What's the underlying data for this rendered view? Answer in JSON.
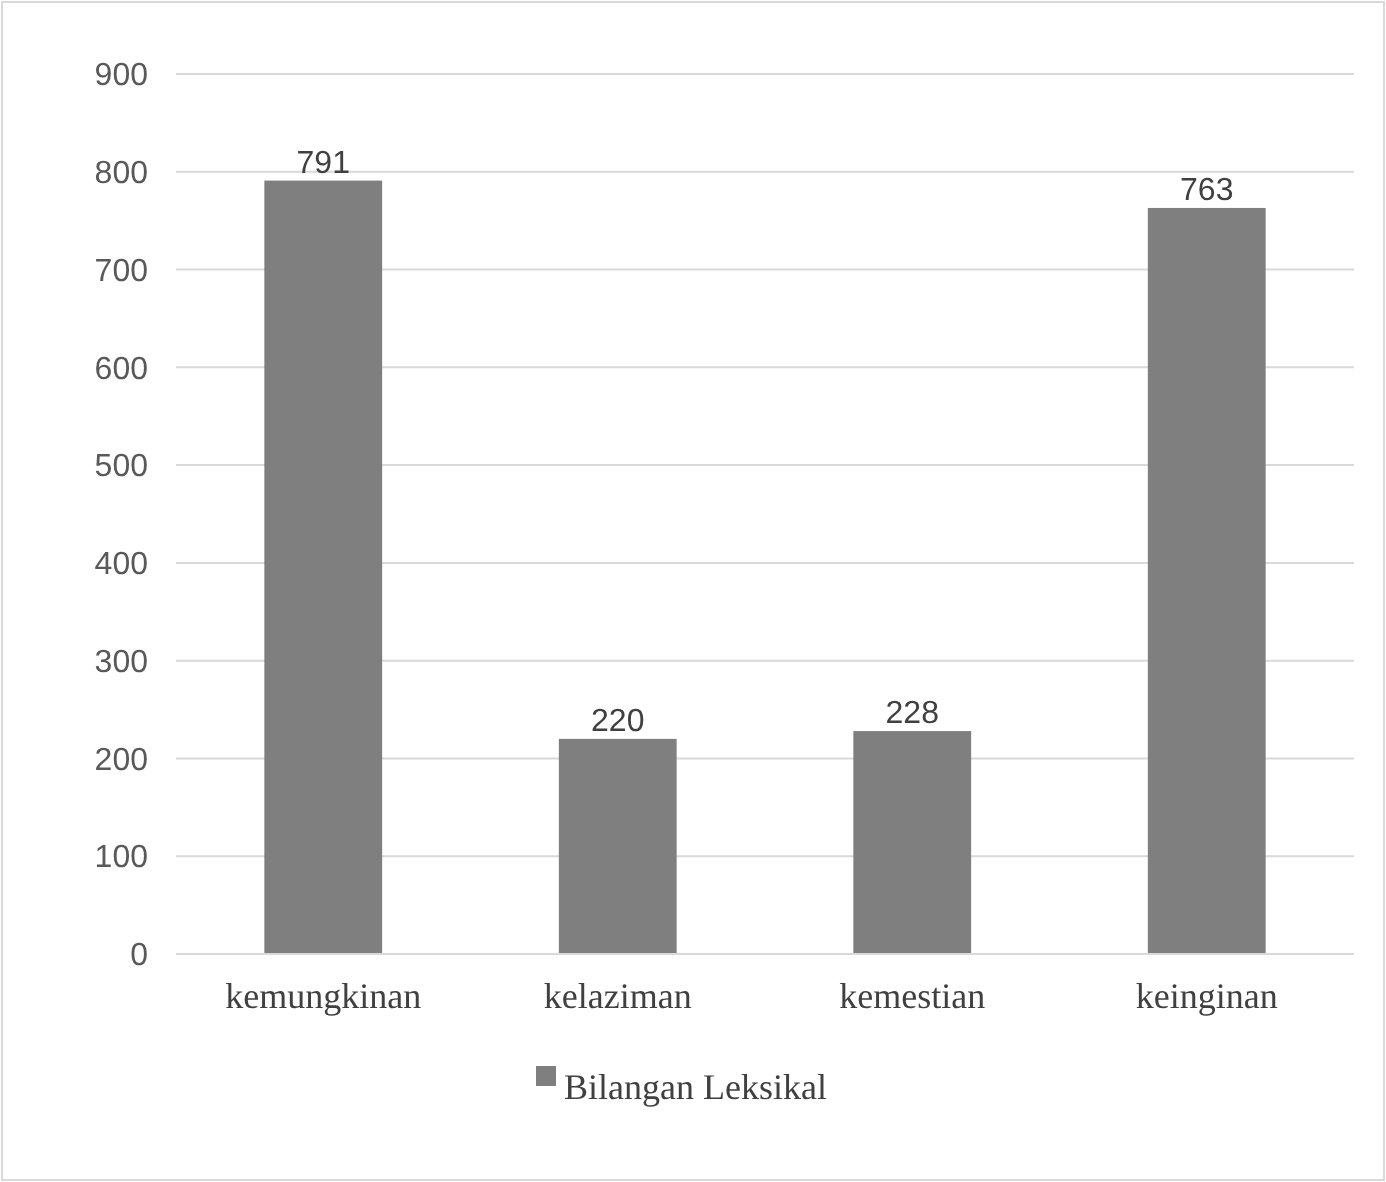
{
  "chart_data": {
    "type": "bar",
    "categories": [
      "kemungkinan",
      "kelaziman",
      "kemestian",
      "keinginan"
    ],
    "series": [
      {
        "name": "Bilangan Leksikal",
        "color": "#7f7f7f",
        "values": [
          791,
          220,
          228,
          763
        ]
      }
    ],
    "ylim": [
      0,
      900
    ],
    "yticks": [
      0,
      100,
      200,
      300,
      400,
      500,
      600,
      700,
      800,
      900
    ],
    "grid": "y",
    "data_labels": true,
    "legend": "bottom"
  }
}
